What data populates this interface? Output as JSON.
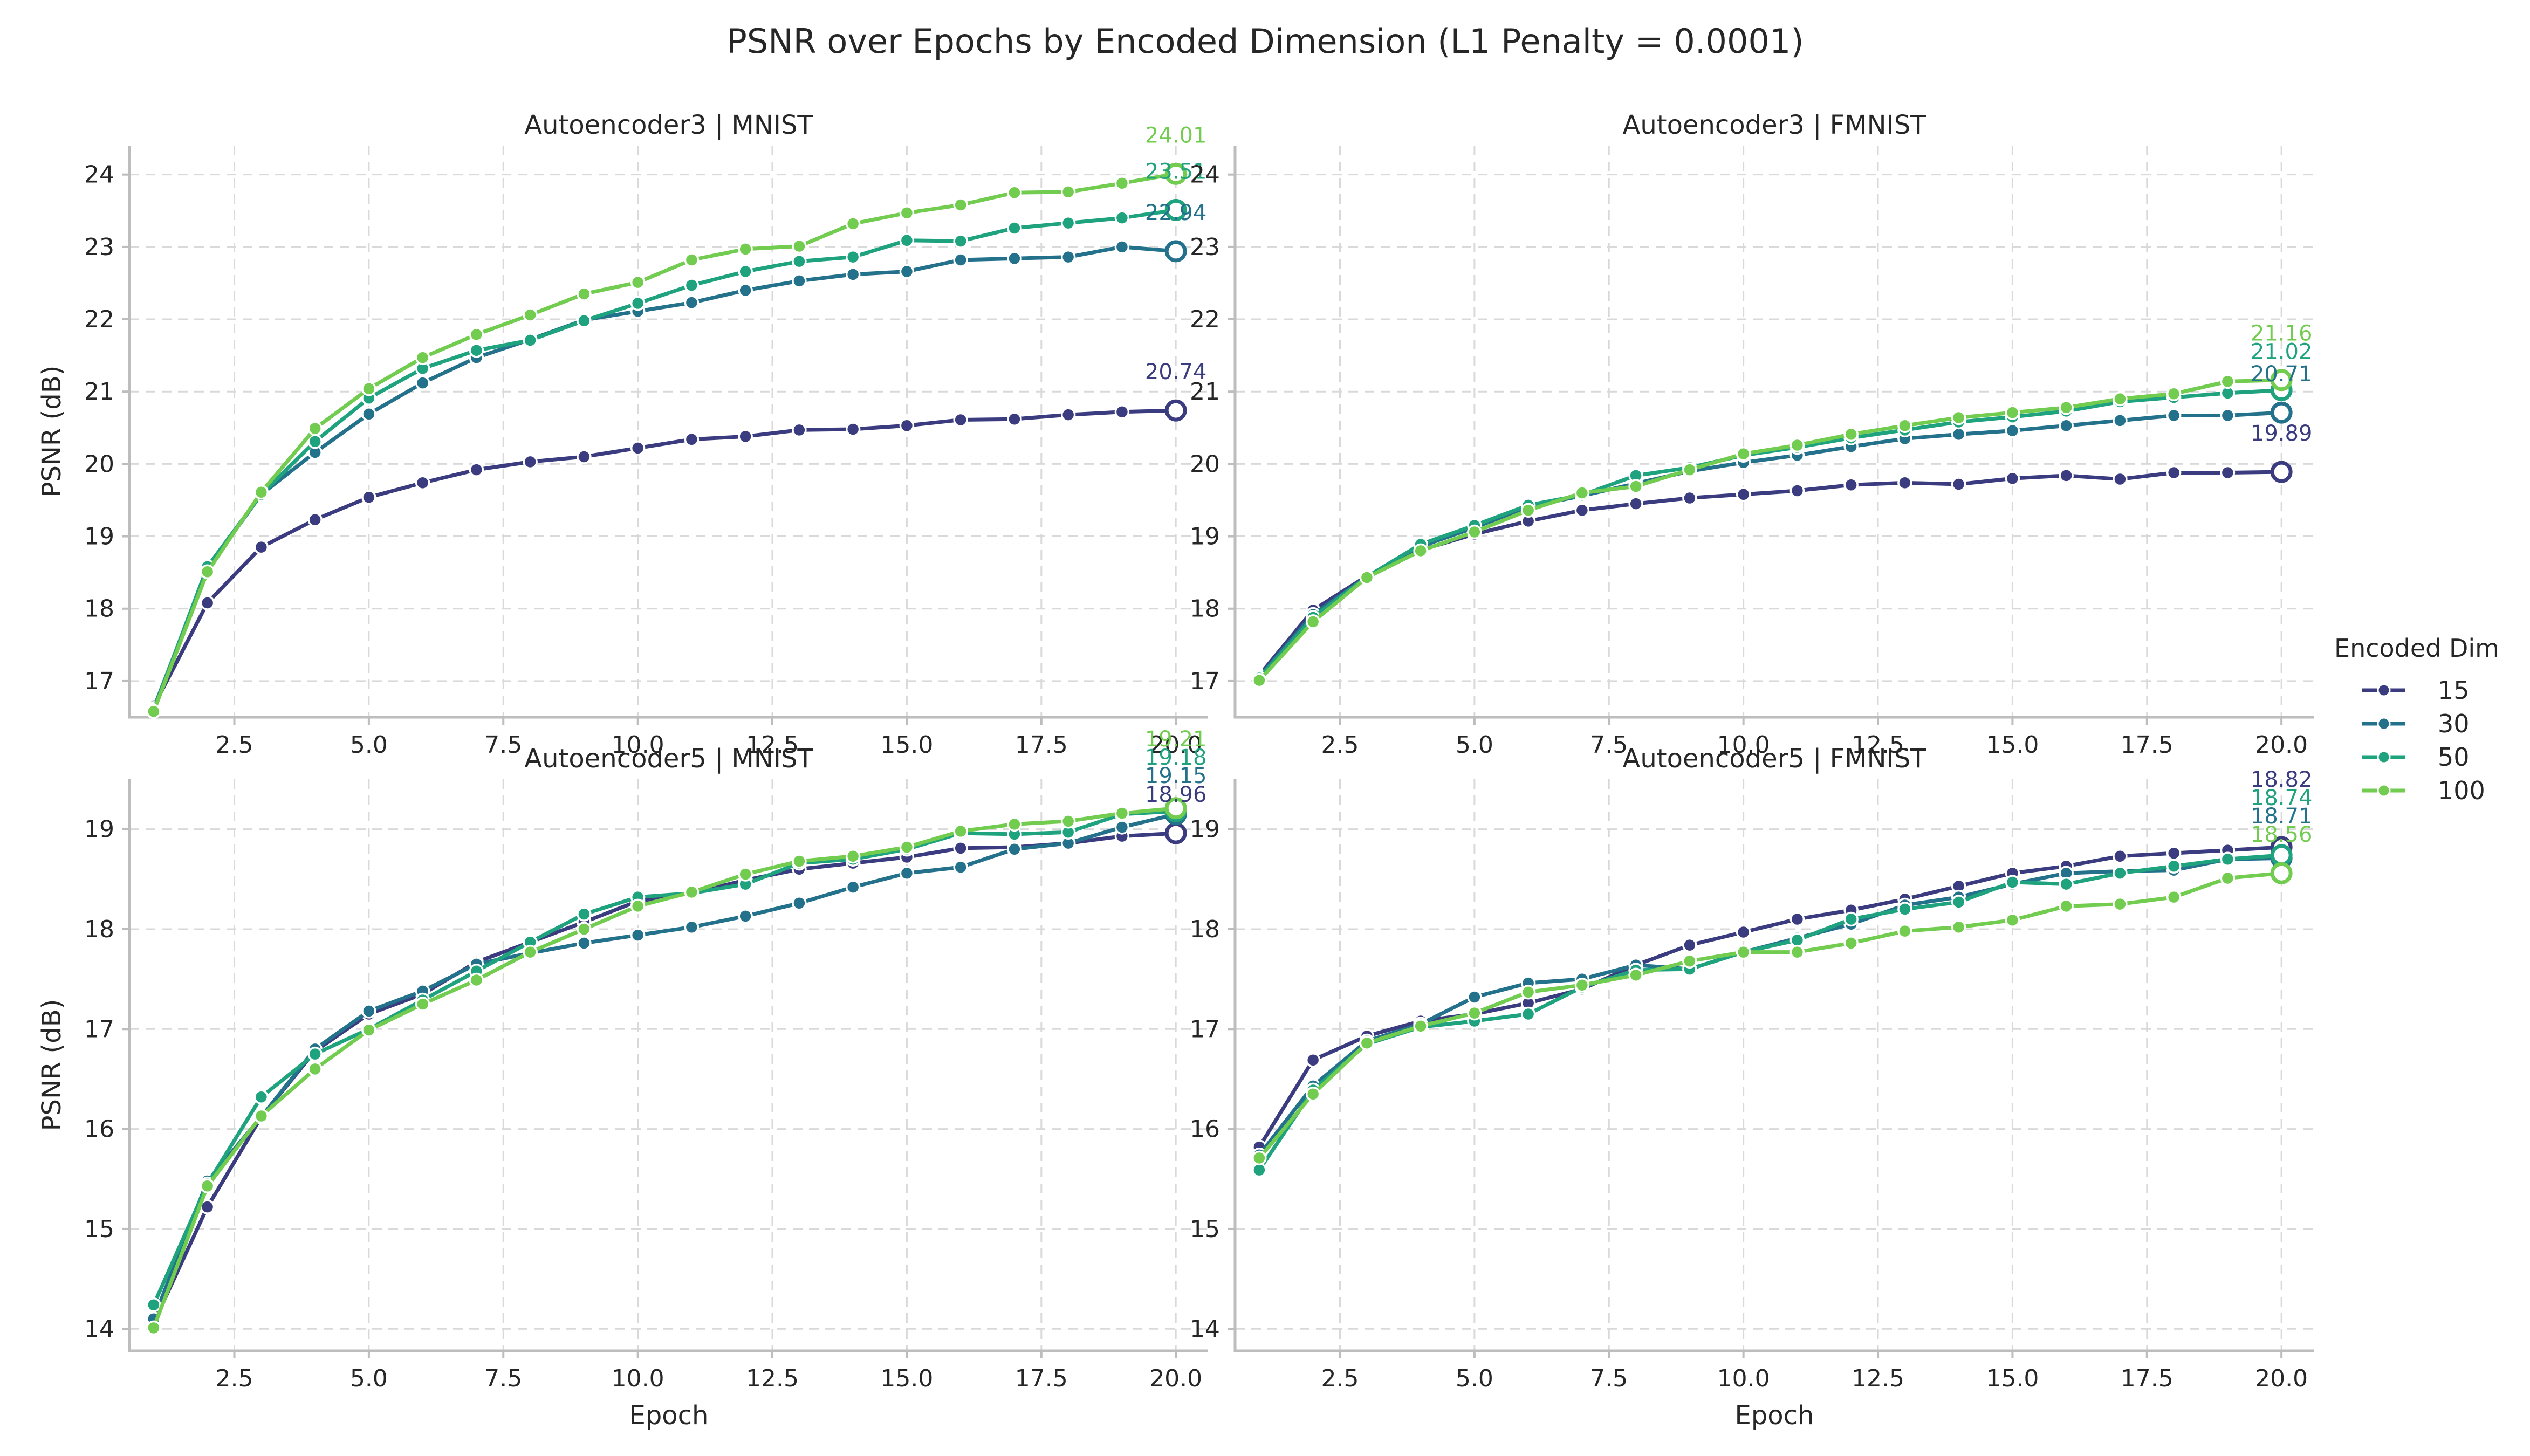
{
  "figure_title": "PSNR over Epochs by Encoded Dimension (L1 Penalty = 0.0001)",
  "legend": {
    "title": "Encoded Dim",
    "placement": "right"
  },
  "colors": {
    "15": "#3b3b80",
    "30": "#23718b",
    "50": "#1fa37f",
    "100": "#72cc4f"
  },
  "chart_data": [
    {
      "type": "line",
      "title": "Autoencoder3 | MNIST",
      "xlabel": "",
      "ylabel": "PSNR (dB)",
      "xlim": [
        0.55,
        20.6
      ],
      "ylim": [
        16.5,
        24.4
      ],
      "xticks": [
        2.5,
        5.0,
        7.5,
        10.0,
        12.5,
        15.0,
        17.5,
        20.0
      ],
      "yticks": [
        17,
        18,
        19,
        20,
        21,
        22,
        23,
        24
      ],
      "grid": true,
      "x": [
        1,
        2,
        3,
        4,
        5,
        6,
        7,
        8,
        9,
        10,
        11,
        12,
        13,
        14,
        15,
        16,
        17,
        18,
        19,
        20
      ],
      "series": [
        {
          "name": "15",
          "values": [
            16.65,
            18.08,
            18.85,
            19.23,
            19.54,
            19.74,
            19.92,
            20.03,
            20.1,
            20.22,
            20.34,
            20.38,
            20.47,
            20.48,
            20.53,
            20.61,
            20.62,
            20.68,
            20.72,
            20.74
          ],
          "end_label": "20.74"
        },
        {
          "name": "30",
          "values": [
            16.62,
            18.55,
            19.58,
            20.16,
            20.69,
            21.12,
            21.47,
            21.72,
            21.99,
            22.11,
            22.23,
            22.4,
            22.53,
            22.62,
            22.66,
            22.82,
            22.84,
            22.86,
            23.0,
            22.94
          ],
          "end_label": "22.94"
        },
        {
          "name": "50",
          "values": [
            16.6,
            18.58,
            19.58,
            20.31,
            20.91,
            21.32,
            21.57,
            21.71,
            21.98,
            22.22,
            22.47,
            22.66,
            22.8,
            22.86,
            23.09,
            23.08,
            23.26,
            23.33,
            23.4,
            23.51
          ],
          "end_label": "23.51"
        },
        {
          "name": "100",
          "values": [
            16.58,
            18.51,
            19.61,
            20.49,
            21.04,
            21.47,
            21.79,
            22.06,
            22.35,
            22.51,
            22.82,
            22.97,
            23.01,
            23.32,
            23.47,
            23.58,
            23.75,
            23.76,
            23.88,
            24.01
          ],
          "end_label": "24.01"
        }
      ]
    },
    {
      "type": "line",
      "title": "Autoencoder3 | FMNIST",
      "xlabel": "",
      "ylabel": "",
      "xlim": [
        0.55,
        20.6
      ],
      "ylim": [
        16.5,
        24.4
      ],
      "xticks": [
        2.5,
        5.0,
        7.5,
        10.0,
        12.5,
        15.0,
        17.5,
        20.0
      ],
      "yticks": [
        17,
        18,
        19,
        20,
        21,
        22,
        23,
        24
      ],
      "grid": true,
      "x": [
        1,
        2,
        3,
        4,
        5,
        6,
        7,
        8,
        9,
        10,
        11,
        12,
        13,
        14,
        15,
        16,
        17,
        18,
        19,
        20
      ],
      "series": [
        {
          "name": "15",
          "values": [
            17.08,
            17.98,
            18.45,
            18.81,
            19.03,
            19.21,
            19.36,
            19.45,
            19.53,
            19.58,
            19.63,
            19.71,
            19.74,
            19.72,
            19.8,
            19.84,
            19.79,
            19.88,
            19.88,
            19.89
          ],
          "end_label": "19.89"
        },
        {
          "name": "30",
          "values": [
            17.06,
            17.92,
            18.44,
            18.86,
            19.12,
            19.41,
            19.56,
            19.73,
            19.9,
            20.02,
            20.12,
            20.24,
            20.35,
            20.41,
            20.46,
            20.53,
            20.6,
            20.67,
            20.67,
            20.71
          ],
          "end_label": "20.71"
        },
        {
          "name": "50",
          "values": [
            17.04,
            17.88,
            18.44,
            18.89,
            19.15,
            19.43,
            19.57,
            19.84,
            19.95,
            20.12,
            20.23,
            20.36,
            20.47,
            20.58,
            20.65,
            20.73,
            20.86,
            20.92,
            20.98,
            21.02
          ],
          "end_label": "21.02"
        },
        {
          "name": "100",
          "values": [
            17.01,
            17.82,
            18.43,
            18.8,
            19.06,
            19.36,
            19.6,
            19.69,
            19.92,
            20.14,
            20.26,
            20.41,
            20.53,
            20.64,
            20.71,
            20.78,
            20.9,
            20.97,
            21.14,
            21.16
          ],
          "end_label": "21.16"
        }
      ]
    },
    {
      "type": "line",
      "title": "Autoencoder5 | MNIST",
      "xlabel": "Epoch",
      "ylabel": "PSNR (dB)",
      "xlim": [
        0.55,
        20.6
      ],
      "ylim": [
        13.78,
        19.5
      ],
      "xticks": [
        2.5,
        5.0,
        7.5,
        10.0,
        12.5,
        15.0,
        17.5,
        20.0
      ],
      "yticks": [
        14,
        15,
        16,
        17,
        18,
        19
      ],
      "grid": true,
      "x": [
        1,
        2,
        3,
        4,
        5,
        6,
        7,
        8,
        9,
        10,
        11,
        12,
        13,
        14,
        15,
        16,
        17,
        18,
        19,
        20
      ],
      "series": [
        {
          "name": "15",
          "values": [
            14.06,
            15.22,
            16.12,
            16.78,
            17.15,
            17.35,
            17.67,
            17.87,
            18.07,
            18.28,
            18.36,
            18.49,
            18.6,
            18.66,
            18.72,
            18.81,
            18.82,
            18.86,
            18.93,
            18.96
          ],
          "end_label": "18.96"
        },
        {
          "name": "30",
          "values": [
            14.1,
            15.48,
            16.12,
            16.8,
            17.18,
            17.38,
            17.65,
            17.76,
            17.86,
            17.94,
            18.02,
            18.13,
            18.26,
            18.42,
            18.56,
            18.62,
            18.8,
            18.86,
            19.02,
            19.15
          ],
          "end_label": "19.15"
        },
        {
          "name": "50",
          "values": [
            14.24,
            15.45,
            16.32,
            16.75,
            17.0,
            17.29,
            17.58,
            17.87,
            18.15,
            18.32,
            18.36,
            18.45,
            18.66,
            18.7,
            18.8,
            18.96,
            18.95,
            18.97,
            19.15,
            19.18
          ],
          "end_label": "19.18"
        },
        {
          "name": "100",
          "values": [
            14.01,
            15.43,
            16.13,
            16.6,
            16.99,
            17.25,
            17.49,
            17.77,
            18.0,
            18.23,
            18.37,
            18.55,
            18.68,
            18.73,
            18.82,
            18.98,
            19.05,
            19.08,
            19.16,
            19.21
          ],
          "end_label": "19.21"
        }
      ]
    },
    {
      "type": "line",
      "title": "Autoencoder5 | FMNIST",
      "xlabel": "Epoch",
      "ylabel": "",
      "xlim": [
        0.55,
        20.6
      ],
      "ylim": [
        13.78,
        19.5
      ],
      "xticks": [
        2.5,
        5.0,
        7.5,
        10.0,
        12.5,
        15.0,
        17.5,
        20.0
      ],
      "yticks": [
        14,
        15,
        16,
        17,
        18,
        19
      ],
      "grid": true,
      "x": [
        1,
        2,
        3,
        4,
        5,
        6,
        7,
        8,
        9,
        10,
        11,
        12,
        13,
        14,
        15,
        16,
        17,
        18,
        19,
        20
      ],
      "series": [
        {
          "name": "15",
          "values": [
            15.82,
            16.69,
            16.93,
            17.08,
            17.15,
            17.26,
            17.4,
            17.64,
            17.84,
            17.97,
            18.1,
            18.19,
            18.3,
            18.43,
            18.56,
            18.63,
            18.73,
            18.76,
            18.79,
            18.82
          ],
          "end_label": "18.82"
        },
        {
          "name": "30",
          "values": [
            15.74,
            16.43,
            16.88,
            17.05,
            17.32,
            17.46,
            17.5,
            17.64,
            17.6,
            17.77,
            17.91,
            18.05,
            18.24,
            18.32,
            18.45,
            18.56,
            18.58,
            18.59,
            18.7,
            18.71
          ],
          "end_label": "18.71"
        },
        {
          "name": "50",
          "values": [
            15.59,
            16.39,
            16.85,
            17.02,
            17.08,
            17.15,
            17.42,
            17.59,
            17.6,
            17.77,
            17.89,
            18.1,
            18.2,
            18.27,
            18.47,
            18.45,
            18.56,
            18.63,
            18.7,
            18.74
          ],
          "end_label": "18.74"
        },
        {
          "name": "100",
          "values": [
            15.71,
            16.35,
            16.86,
            17.03,
            17.16,
            17.37,
            17.44,
            17.54,
            17.68,
            17.77,
            17.77,
            17.86,
            17.98,
            18.02,
            18.09,
            18.23,
            18.25,
            18.32,
            18.51,
            18.56
          ],
          "end_label": "18.56"
        }
      ]
    }
  ]
}
